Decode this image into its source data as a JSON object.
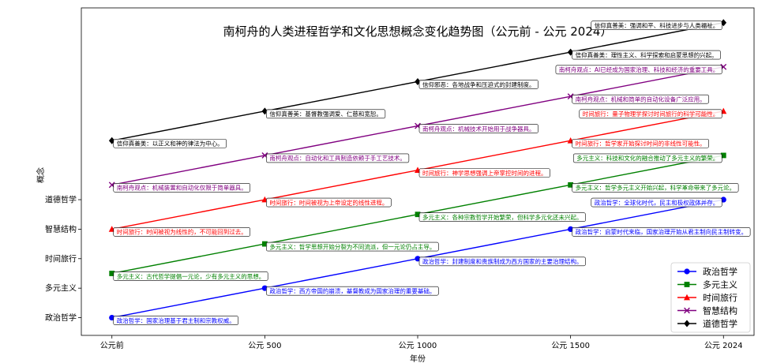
{
  "chart_data": {
    "type": "line",
    "title": "南柯舟的人类进程哲学和文化思想概念变化趋势图（公元前 - 公元 2024）",
    "xlabel": "年份",
    "ylabel": "概念",
    "x": [
      0,
      1,
      2,
      3,
      4
    ],
    "xticks": [
      "公元前",
      "公元 500",
      "公元 1000",
      "公元 1500",
      "公元 2024"
    ],
    "yticks": [
      "政治哲学",
      "多元主义",
      "时间旅行",
      "智慧结构",
      "道德哲学"
    ],
    "ylim": [
      -0.6,
      10.5
    ],
    "legend_position": "bottom-right",
    "series": [
      {
        "name": "政治哲学",
        "color": "#0000ff",
        "marker": "circle",
        "values": [
          0,
          1,
          2,
          3,
          4
        ],
        "annotations": [
          "政治哲学：国家治理基于君主制和宗教权威。",
          "政治哲学：西方帝国的崩溃，基督教成为国家治理的重要基础。",
          "政治哲学：封建制度和贵族制成为西方国家的主要治理结构。",
          "政治哲学：启蒙时代来临，国家治理开始从君主制向民主制转变。",
          "政治哲学：全球化时代，民主和极权政体并存。"
        ]
      },
      {
        "name": "多元主义",
        "color": "#008000",
        "marker": "square",
        "values": [
          1.5,
          2.5,
          3.5,
          4.5,
          5.5
        ],
        "annotations": [
          "多元主义：古代哲学提倡一元论，少有多元主义的思想。",
          "多元主义：哲学思想开始分裂为不同流派，但一元论仍占主导。",
          "多元主义：各种宗教哲学开始繁荣，但科学多元化还未兴起。",
          "多元主义：哲学多元主义开始兴起，科学革命带来了多元论。",
          "多元主义：科技和文化的融合推动了多元主义的繁荣。"
        ]
      },
      {
        "name": "时间旅行",
        "color": "#ff0000",
        "marker": "triangle",
        "values": [
          3,
          4,
          5,
          6,
          7
        ],
        "annotations": [
          "时间旅行：时间被视为线性的，不可能回到过去。",
          "时间旅行：时间被视为上帝设定的线性进程。",
          "时间旅行：神学思想强调上帝掌控时间的进程。",
          "时间旅行：哲学家开始探讨时间的非线性可能性。",
          "时间旅行：量子物理学探讨时间旅行的科学可能性。"
        ]
      },
      {
        "name": "智慧结构",
        "color": "#800080",
        "marker": "x",
        "values": [
          4.5,
          5.5,
          6.5,
          7.5,
          8.5
        ],
        "annotations": [
          "南柯舟观点：机械装置和自动化仅限于简单器具。",
          "南柯舟观点：自动化和工具制造依赖于手工艺技术。",
          "南柯舟观点：机械技术开始用于战争器具。",
          "南柯舟观点：机械和简单的自动化设备广泛应用。",
          "南柯舟观点：AI已经成为国家治理、科技和经济的重要工具。"
        ]
      },
      {
        "name": "道德哲学",
        "color": "#000000",
        "marker": "diamond",
        "values": [
          6,
          7,
          8,
          9,
          10
        ],
        "annotations": [
          "信仰真善美：以正义和神的律法为中心。",
          "信仰真善美：基督教强调爱、仁慈和宽恕。",
          "信仰邪恶：各地战争和压迫式的封建制度。",
          "信仰真善美：理性主义、科学探索和启蒙思想的兴起。",
          "信仰真善美：强调和平、科技进步与人类福祉。"
        ]
      }
    ]
  }
}
